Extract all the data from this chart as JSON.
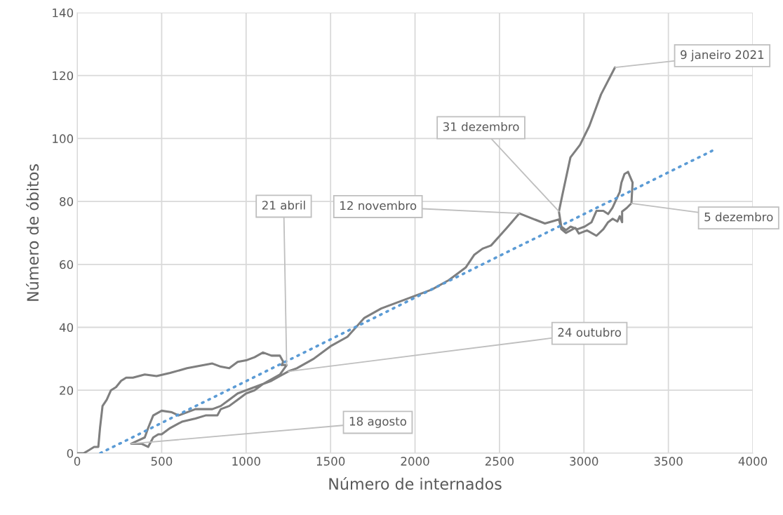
{
  "chart_data": {
    "type": "line",
    "xlabel": "Número de internados",
    "ylabel": "Número de óbitos",
    "xlim": [
      0,
      4000
    ],
    "xticks": [
      0,
      500,
      1000,
      1500,
      2000,
      2500,
      3000,
      3500,
      4000
    ],
    "ylim": [
      0,
      140
    ],
    "yticks": [
      0,
      20,
      40,
      60,
      80,
      100,
      120,
      140
    ],
    "grid": true,
    "marker": "none",
    "series": [
      {
        "color": "#7f7f7f",
        "line_style": "solid",
        "x": [
          0,
          40,
          70,
          100,
          125,
          135,
          150,
          175,
          200,
          230,
          260,
          290,
          330,
          400,
          470,
          550,
          650,
          750,
          800,
          850,
          900,
          950,
          1000,
          1050,
          1100,
          1150,
          1200,
          1220,
          1210,
          1240,
          1200,
          1100,
          1000,
          950,
          900,
          850,
          800,
          700,
          650,
          600,
          560,
          500,
          450,
          420,
          400,
          360,
          320,
          380,
          420,
          450,
          480,
          500,
          550,
          620,
          700,
          760,
          800,
          830,
          850,
          900,
          950,
          1000,
          1050,
          1100,
          1150,
          1200,
          1250,
          1300,
          1400,
          1500,
          1600,
          1650,
          1700,
          1800,
          1900,
          2000,
          2100,
          2200,
          2300,
          2350,
          2400,
          2450,
          2500,
          2550,
          2617,
          2769,
          2852,
          2866,
          2894,
          2949,
          2970,
          3018,
          3074,
          3115,
          3143,
          3170,
          3198,
          3212,
          3226,
          3226,
          3253,
          3281,
          3288,
          3261,
          3240,
          3222,
          3212,
          3169,
          3143,
          3115,
          3074,
          3045,
          3004,
          2962,
          2921,
          2894,
          2866,
          2852,
          2872,
          2920,
          2977,
          3032,
          3101,
          3184
        ],
        "values": [
          0,
          0,
          1,
          2,
          2,
          8,
          15,
          17,
          20,
          21,
          23,
          24,
          24,
          25,
          24.5,
          25.5,
          27,
          28,
          28.5,
          27.5,
          27,
          29,
          29.5,
          30.5,
          32,
          31,
          31,
          29,
          28,
          28,
          25,
          22,
          20,
          19,
          17,
          15,
          14,
          14,
          13,
          12,
          13,
          13.5,
          12,
          8,
          5,
          4,
          3,
          3,
          2,
          5,
          6,
          6,
          8,
          10,
          11,
          12,
          12,
          12,
          14,
          15,
          17,
          19,
          20,
          22,
          23,
          24.5,
          26,
          27,
          30,
          34,
          37,
          40,
          43,
          46,
          48,
          50,
          52,
          55,
          59,
          63,
          65,
          66,
          69,
          72,
          76.2,
          73,
          74.3,
          71.2,
          70,
          71.6,
          69.8,
          70.8,
          69.1,
          71.2,
          73.4,
          74.5,
          73.6,
          75.3,
          73.4,
          76.8,
          77.9,
          79.4,
          86,
          89.4,
          88.7,
          86,
          83,
          78,
          76,
          77,
          77,
          73.4,
          72,
          71.2,
          72,
          70.9,
          72,
          76.8,
          82,
          94,
          98,
          104,
          114,
          122.6
        ]
      },
      {
        "color": "#5b9bd5",
        "line_style": "dotted",
        "x": [
          137,
          3759
        ],
        "values": [
          0,
          96.1
        ]
      }
    ],
    "annotations": [
      {
        "text": "21 abril",
        "x": 1240,
        "y": 28
      },
      {
        "text": "24 outubro",
        "x": 1250,
        "y": 26
      },
      {
        "text": "18 agosto",
        "x": 320,
        "y": 3
      },
      {
        "text": "12 novembro",
        "x": 2617,
        "y": 76.2
      },
      {
        "text": "31 dezembro",
        "x": 2852,
        "y": 76.8
      },
      {
        "text": "5 dezembro",
        "x": 3281,
        "y": 79.4
      },
      {
        "text": "9 janeiro 2021",
        "x": 3184,
        "y": 122.6
      }
    ]
  }
}
